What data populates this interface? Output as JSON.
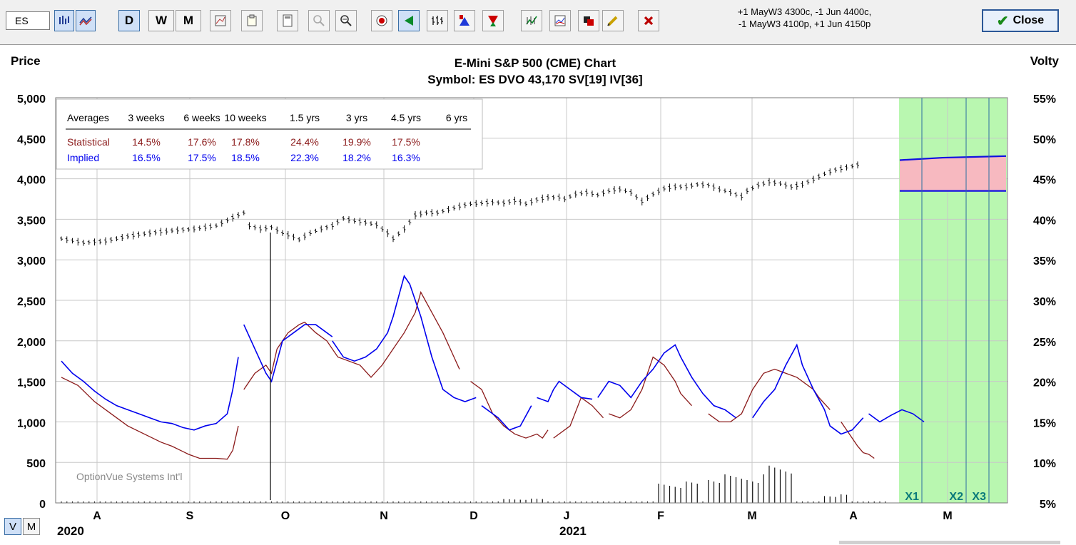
{
  "toolbar": {
    "symbol_value": "ES",
    "period_buttons": [
      "D",
      "W",
      "M"
    ],
    "strategy_lines": [
      "+1 MayW3 4300c, -1 Jun 4400c,",
      "-1 MayW3 4100p, +1 Jun 4150p"
    ],
    "close_label": "Close"
  },
  "view_toggle": {
    "v_label": "V",
    "m_label": "M"
  },
  "chart_data": {
    "type": "line",
    "title": "E-Mini S&P 500 (CME) Chart",
    "subtitle": "Symbol: ES  DVO 43,170  SV[19]  IV[36]",
    "left_axis": {
      "label": "Price",
      "ticks": [
        "5,000",
        "4,500",
        "4,000",
        "3,500",
        "3,000",
        "2,500",
        "2,000",
        "1,500",
        "1,000",
        "500",
        "0"
      ],
      "range": [
        0,
        5000
      ]
    },
    "right_axis": {
      "label": "Volty",
      "ticks": [
        "55%",
        "50%",
        "45%",
        "40%",
        "35%",
        "30%",
        "25%",
        "20%",
        "15%",
        "10%",
        "5%"
      ],
      "range": [
        5,
        55
      ]
    },
    "x_months": [
      "A",
      "S",
      "O",
      "N",
      "D",
      "J",
      "F",
      "M",
      "A",
      "M"
    ],
    "x_years": [
      "2020",
      "2021"
    ],
    "watermark": "OptionVue Systems Int'l",
    "averages_table": {
      "header": [
        "Averages",
        "3 weeks",
        "6 weeks",
        "10 weeks",
        "1.5 yrs",
        "3 yrs",
        "4.5 yrs",
        "6 yrs"
      ],
      "rows": [
        {
          "name": "Statistical",
          "values": [
            "14.5%",
            "17.6%",
            "17.8%",
            "24.4%",
            "19.9%",
            "17.5%",
            ""
          ]
        },
        {
          "name": "Implied",
          "values": [
            "16.5%",
            "17.5%",
            "18.5%",
            "22.3%",
            "18.2%",
            "16.3%",
            ""
          ]
        }
      ]
    },
    "expiration_markers": [
      "X1",
      "X2",
      "X3"
    ],
    "price_series": [
      [
        0,
        3260
      ],
      [
        4,
        3210
      ],
      [
        8,
        3230
      ],
      [
        12,
        3290
      ],
      [
        16,
        3330
      ],
      [
        20,
        3360
      ],
      [
        24,
        3380
      ],
      [
        28,
        3420
      ],
      [
        31,
        3520
      ],
      [
        33,
        3580
      ],
      [
        34,
        3420
      ],
      [
        36,
        3380
      ],
      [
        38,
        3400
      ],
      [
        40,
        3330
      ],
      [
        42,
        3280
      ],
      [
        43,
        3250
      ],
      [
        45,
        3330
      ],
      [
        47,
        3380
      ],
      [
        49,
        3420
      ],
      [
        51,
        3510
      ],
      [
        53,
        3480
      ],
      [
        55,
        3460
      ],
      [
        57,
        3430
      ],
      [
        59,
        3330
      ],
      [
        60,
        3260
      ],
      [
        62,
        3380
      ],
      [
        64,
        3550
      ],
      [
        66,
        3580
      ],
      [
        68,
        3580
      ],
      [
        70,
        3620
      ],
      [
        72,
        3660
      ],
      [
        74,
        3690
      ],
      [
        76,
        3700
      ],
      [
        78,
        3710
      ],
      [
        80,
        3700
      ],
      [
        82,
        3730
      ],
      [
        84,
        3690
      ],
      [
        86,
        3740
      ],
      [
        88,
        3770
      ],
      [
        90,
        3770
      ],
      [
        91,
        3750
      ],
      [
        93,
        3810
      ],
      [
        95,
        3830
      ],
      [
        97,
        3800
      ],
      [
        99,
        3850
      ],
      [
        101,
        3870
      ],
      [
        103,
        3830
      ],
      [
        105,
        3720
      ],
      [
        107,
        3810
      ],
      [
        109,
        3880
      ],
      [
        111,
        3900
      ],
      [
        113,
        3900
      ],
      [
        115,
        3930
      ],
      [
        117,
        3920
      ],
      [
        119,
        3870
      ],
      [
        121,
        3830
      ],
      [
        123,
        3780
      ],
      [
        124,
        3850
      ],
      [
        126,
        3920
      ],
      [
        128,
        3960
      ],
      [
        130,
        3940
      ],
      [
        132,
        3900
      ],
      [
        134,
        3930
      ],
      [
        136,
        3990
      ],
      [
        138,
        4060
      ],
      [
        140,
        4110
      ],
      [
        142,
        4140
      ],
      [
        144,
        4170
      ],
      [
        145,
        4200
      ]
    ],
    "statistical_vol_segments": [
      [
        [
          0,
          20.5
        ],
        [
          3,
          19.5
        ],
        [
          6,
          17.5
        ],
        [
          9,
          16
        ],
        [
          12,
          14.5
        ],
        [
          15,
          13.5
        ],
        [
          18,
          12.5
        ],
        [
          20,
          12
        ],
        [
          23,
          11
        ],
        [
          25,
          10.5
        ],
        [
          28,
          10.5
        ],
        [
          30,
          10.4
        ],
        [
          31,
          11.5
        ],
        [
          32,
          14.5
        ]
      ],
      [
        [
          33,
          19
        ],
        [
          35,
          21
        ],
        [
          37,
          22
        ],
        [
          38,
          21
        ],
        [
          39,
          24
        ],
        [
          41,
          26
        ],
        [
          43,
          27
        ],
        [
          44,
          27.3
        ],
        [
          46,
          26
        ],
        [
          48,
          25
        ],
        [
          50,
          23
        ],
        [
          52,
          22.5
        ],
        [
          54,
          22
        ],
        [
          56,
          20.5
        ],
        [
          58,
          22
        ],
        [
          60,
          24
        ],
        [
          62,
          26
        ],
        [
          64,
          28.5
        ],
        [
          65,
          31
        ],
        [
          67,
          28.5
        ],
        [
          69,
          26
        ],
        [
          71,
          23
        ],
        [
          72,
          21.5
        ]
      ],
      [
        [
          74,
          20
        ],
        [
          76,
          19
        ],
        [
          77,
          17.5
        ],
        [
          78,
          16
        ],
        [
          80,
          14.5
        ],
        [
          82,
          13.5
        ],
        [
          84,
          13
        ],
        [
          86,
          13.5
        ],
        [
          87,
          13
        ],
        [
          88,
          14
        ]
      ],
      [
        [
          89,
          13
        ],
        [
          92,
          14.5
        ],
        [
          94,
          18
        ],
        [
          96,
          17
        ],
        [
          98,
          15.5
        ]
      ],
      [
        [
          99,
          16
        ],
        [
          101,
          15.5
        ],
        [
          103,
          16.5
        ],
        [
          105,
          19
        ],
        [
          107,
          23
        ],
        [
          109,
          22
        ],
        [
          111,
          20
        ],
        [
          112,
          18.5
        ],
        [
          114,
          17
        ]
      ],
      [
        [
          117,
          16
        ],
        [
          119,
          15
        ],
        [
          121,
          15
        ],
        [
          123,
          16
        ],
        [
          125,
          19
        ],
        [
          127,
          21
        ],
        [
          129,
          21.5
        ],
        [
          131,
          21
        ],
        [
          133,
          20.5
        ],
        [
          134,
          20
        ],
        [
          136,
          19
        ],
        [
          137,
          18
        ],
        [
          139,
          16.5
        ]
      ],
      [
        [
          141,
          15
        ],
        [
          142,
          14
        ],
        [
          144,
          12
        ],
        [
          145,
          11.2
        ],
        [
          146,
          11
        ],
        [
          147,
          10.5
        ]
      ]
    ],
    "implied_vol_segments": [
      [
        [
          0,
          22.5
        ],
        [
          2,
          21
        ],
        [
          4,
          20
        ],
        [
          6,
          18.8
        ],
        [
          8,
          17.8
        ],
        [
          10,
          17
        ],
        [
          12,
          16.5
        ],
        [
          14,
          16
        ],
        [
          16,
          15.5
        ],
        [
          18,
          15
        ],
        [
          20,
          14.8
        ],
        [
          22,
          14.3
        ],
        [
          24,
          14
        ],
        [
          26,
          14.5
        ],
        [
          28,
          14.8
        ],
        [
          30,
          16
        ],
        [
          31,
          19
        ],
        [
          32,
          23
        ]
      ],
      [
        [
          33,
          27
        ],
        [
          35,
          24
        ],
        [
          37,
          21
        ],
        [
          38,
          20
        ],
        [
          40,
          25
        ],
        [
          42,
          26
        ],
        [
          44,
          27
        ],
        [
          46,
          27
        ],
        [
          48,
          26
        ],
        [
          49,
          25.5
        ]
      ],
      [
        [
          49,
          25
        ],
        [
          51,
          23
        ],
        [
          53,
          22.5
        ],
        [
          55,
          23
        ],
        [
          57,
          24
        ],
        [
          59,
          26
        ],
        [
          60,
          28
        ],
        [
          62,
          33
        ],
        [
          63,
          32
        ],
        [
          65,
          28
        ],
        [
          67,
          23
        ],
        [
          69,
          19
        ],
        [
          71,
          18
        ],
        [
          73,
          17.5
        ],
        [
          75,
          18
        ]
      ],
      [
        [
          76,
          17
        ],
        [
          78,
          16
        ],
        [
          79,
          15.5
        ],
        [
          81,
          14
        ],
        [
          83,
          14.5
        ],
        [
          85,
          17
        ]
      ],
      [
        [
          86,
          18
        ],
        [
          88,
          17.5
        ],
        [
          89,
          19
        ],
        [
          90,
          20
        ],
        [
          92,
          19
        ],
        [
          94,
          18
        ],
        [
          96,
          17.8
        ]
      ],
      [
        [
          97,
          18
        ],
        [
          99,
          20
        ],
        [
          101,
          19.5
        ],
        [
          103,
          18
        ],
        [
          105,
          20
        ],
        [
          107,
          21.5
        ],
        [
          109,
          23.5
        ],
        [
          111,
          24.5
        ],
        [
          112,
          23
        ],
        [
          114,
          20.5
        ],
        [
          116,
          18.5
        ],
        [
          118,
          17
        ],
        [
          120,
          16.5
        ],
        [
          122,
          15.5
        ]
      ],
      [
        [
          125,
          15.5
        ],
        [
          127,
          17.5
        ],
        [
          129,
          19
        ],
        [
          131,
          22
        ],
        [
          133,
          24.5
        ],
        [
          134,
          22
        ],
        [
          136,
          19
        ],
        [
          138,
          16.5
        ],
        [
          139,
          14.5
        ],
        [
          141,
          13.5
        ],
        [
          143,
          14
        ],
        [
          145,
          15.5
        ]
      ],
      [
        [
          146,
          16
        ],
        [
          148,
          15
        ],
        [
          150,
          15.8
        ],
        [
          152,
          16.5
        ],
        [
          154,
          16
        ],
        [
          156,
          15
        ]
      ]
    ],
    "expected_range_band": {
      "upper": 4200,
      "lower": 3850
    }
  }
}
